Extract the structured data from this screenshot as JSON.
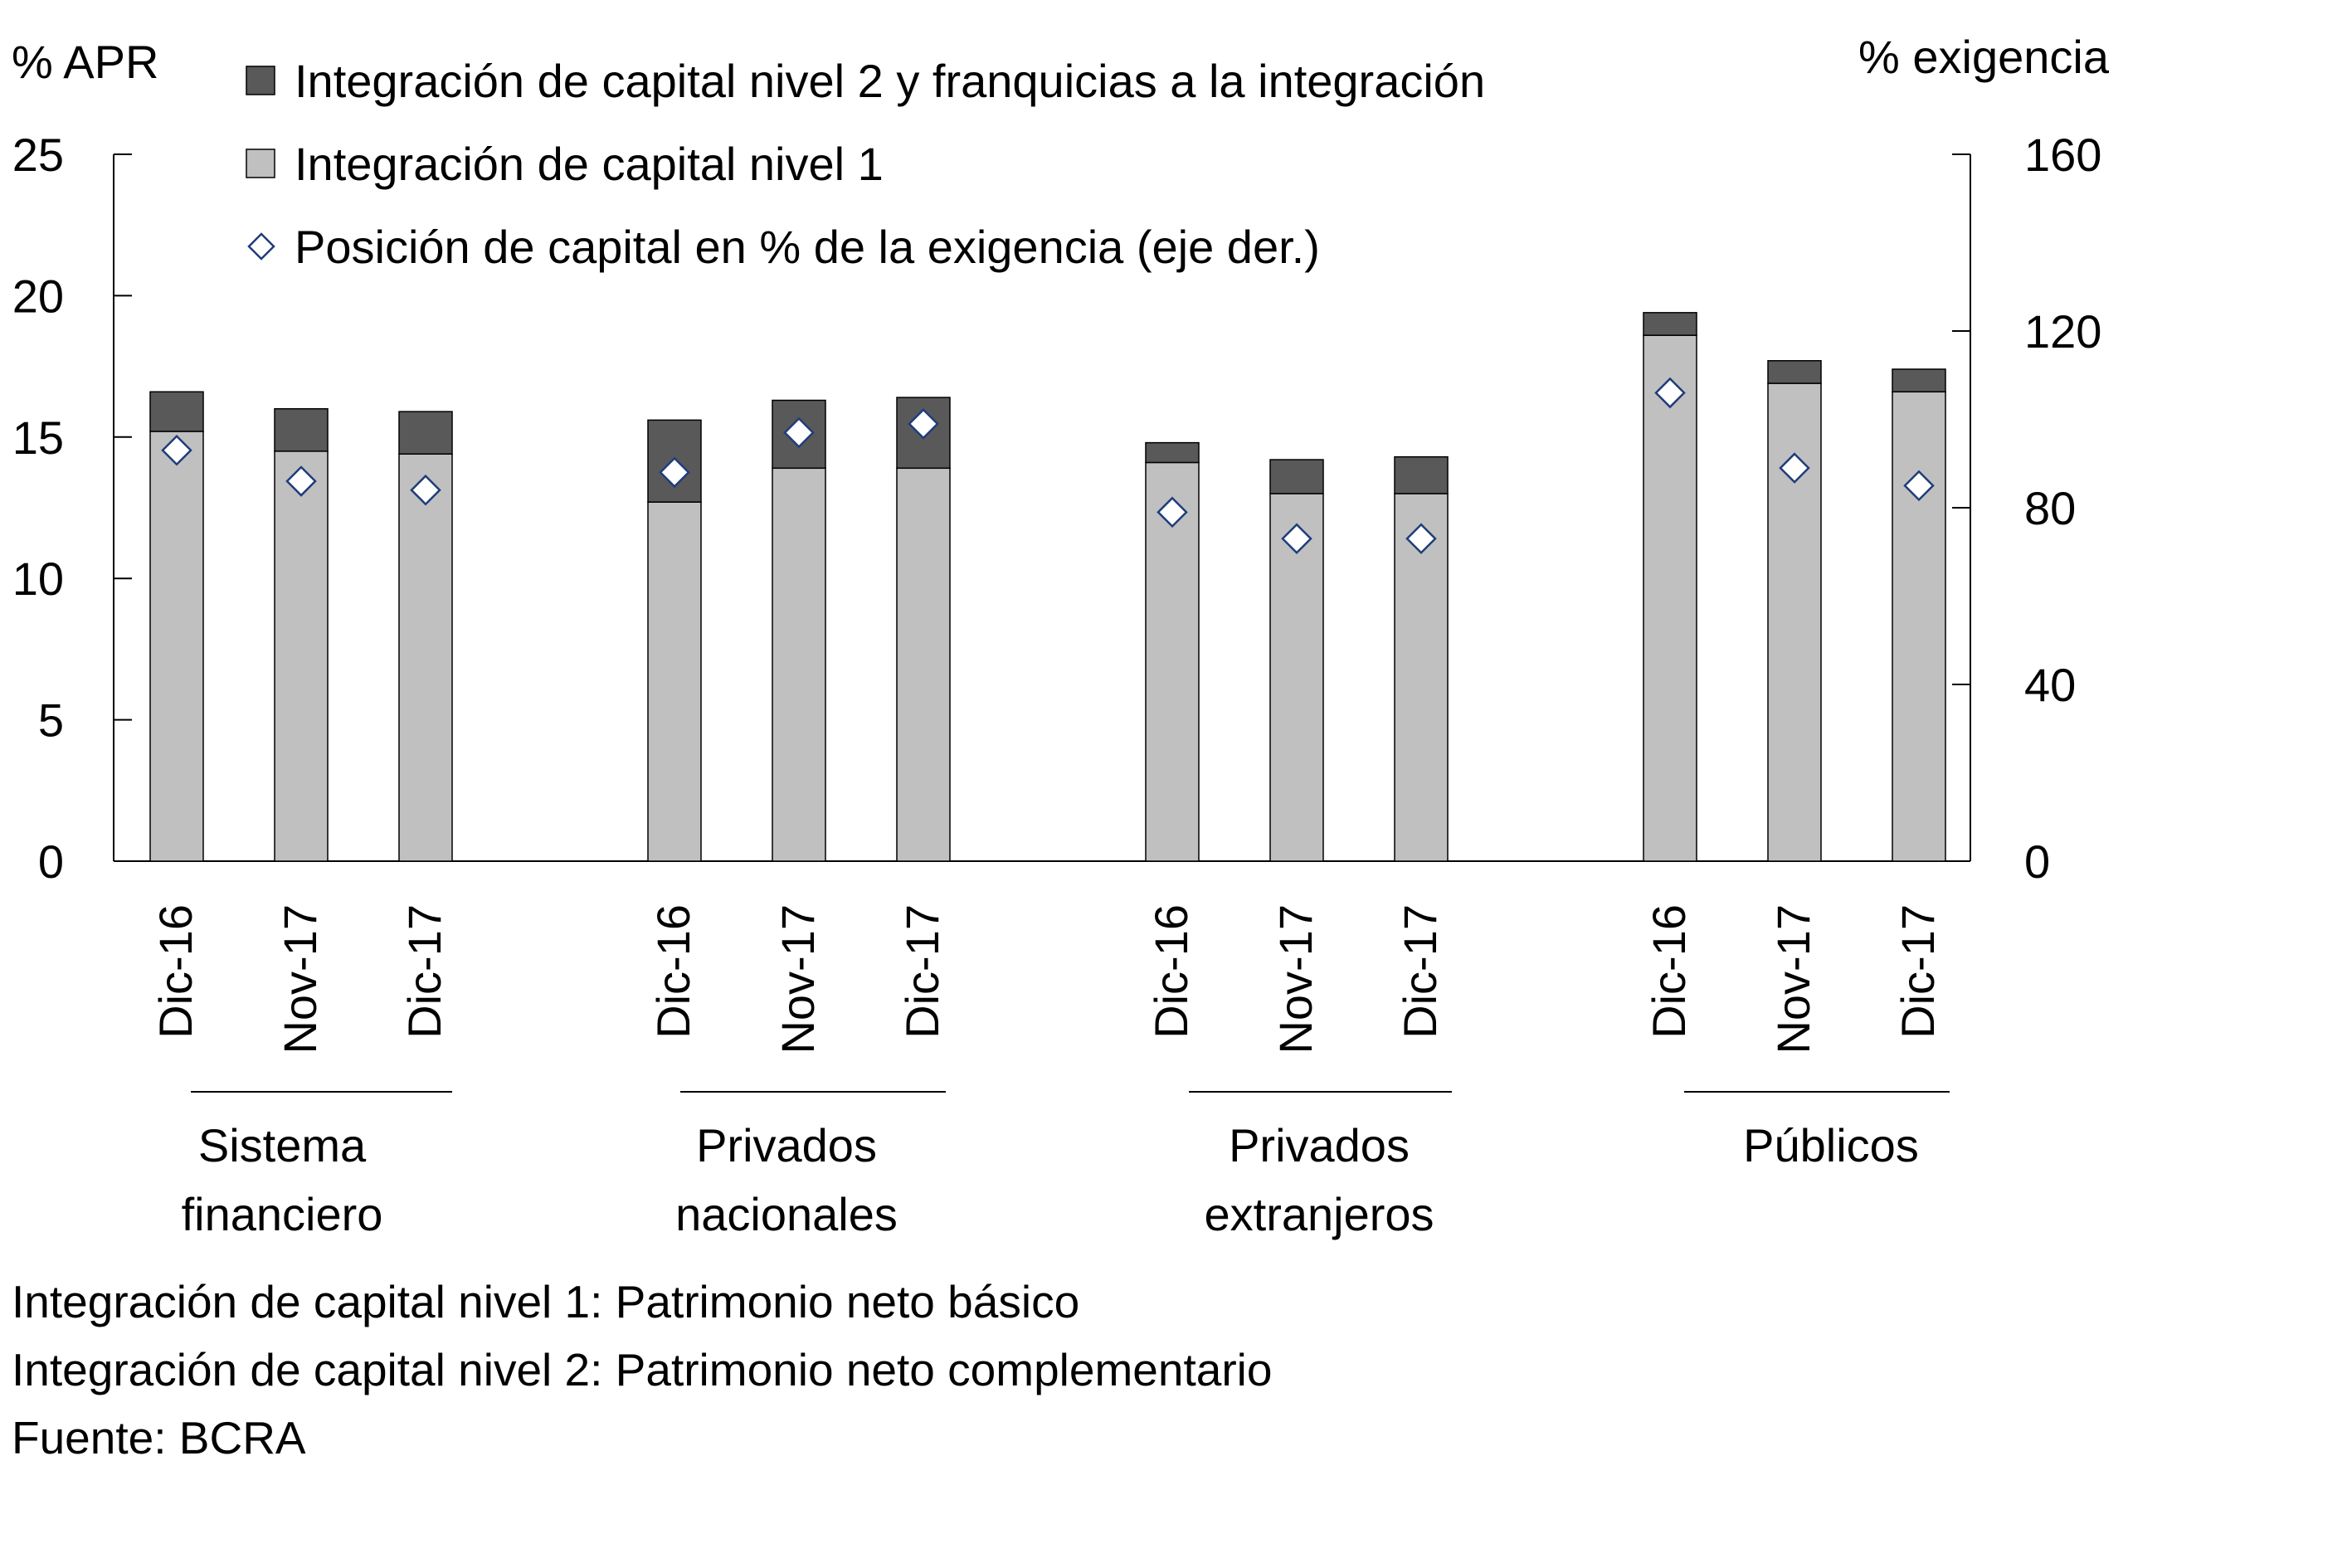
{
  "chart_data": {
    "type": "bar",
    "stacked": true,
    "left_axis": {
      "label": "% APR",
      "ylim": [
        0,
        25
      ],
      "ticks": [
        0,
        5,
        10,
        15,
        20,
        25
      ]
    },
    "right_axis": {
      "label": "% exigencia",
      "ylim": [
        0,
        160
      ],
      "ticks": [
        0,
        40,
        80,
        120,
        160
      ]
    },
    "legend": [
      {
        "name": "Integración de capital nivel 2 y franquicias a la integración",
        "color": "#595959",
        "marker": "square"
      },
      {
        "name": "Integración de capital nivel 1",
        "color": "#c0c0c0",
        "marker": "square"
      },
      {
        "name": "Posición de capital en % de la exigencia (eje der.)",
        "color": "#1f3d7a",
        "marker": "diamond"
      }
    ],
    "groups": [
      {
        "label": [
          "Sistema",
          "financiero"
        ],
        "categories": [
          "Dic-16",
          "Nov-17",
          "Dic-17"
        ],
        "nivel1": [
          15.2,
          14.5,
          14.4
        ],
        "nivel2": [
          1.4,
          1.5,
          1.5
        ],
        "posicion": [
          93,
          86,
          84
        ]
      },
      {
        "label": [
          "Privados",
          "nacionales"
        ],
        "categories": [
          "Dic-16",
          "Nov-17",
          "Dic-17"
        ],
        "nivel1": [
          12.7,
          13.9,
          13.9
        ],
        "nivel2": [
          2.9,
          2.4,
          2.5
        ],
        "posicion": [
          88,
          97,
          99
        ]
      },
      {
        "label": [
          "Privados",
          "extranjeros"
        ],
        "categories": [
          "Dic-16",
          "Nov-17",
          "Dic-17"
        ],
        "nivel1": [
          14.1,
          13.0,
          13.0
        ],
        "nivel2": [
          0.7,
          1.2,
          1.3
        ],
        "posicion": [
          79,
          73,
          73
        ]
      },
      {
        "label": [
          "Públicos"
        ],
        "categories": [
          "Dic-16",
          "Nov-17",
          "Dic-17"
        ],
        "nivel1": [
          18.6,
          16.9,
          16.6
        ],
        "nivel2": [
          0.8,
          0.8,
          0.8
        ],
        "posicion": [
          106,
          89,
          85
        ]
      }
    ],
    "grid": false
  },
  "notes": [
    "Integración de capital nivel 1: Patrimonio neto básico",
    "Integración de capital nivel 2: Patrimonio neto complementario",
    "Fuente: BCRA"
  ]
}
